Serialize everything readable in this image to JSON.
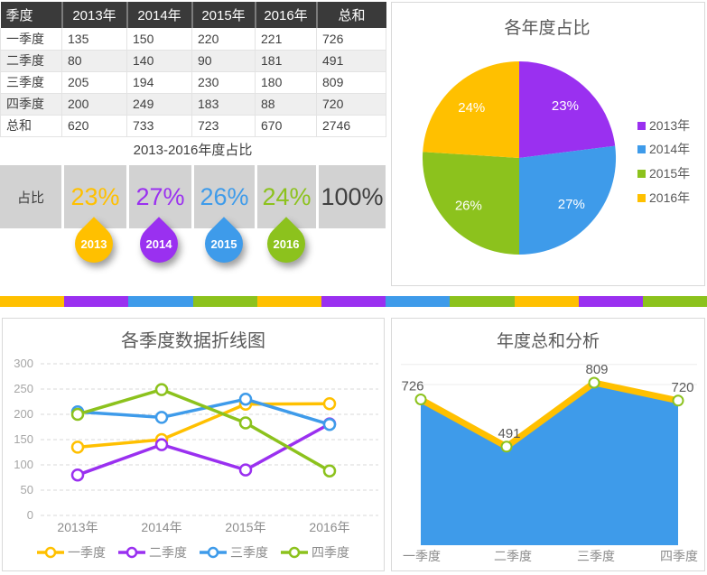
{
  "theme": {
    "orange": "#FFC000",
    "purple": "#9A30F0",
    "blue": "#3E9BEA",
    "green": "#8CC21D",
    "title_gray": "#595959",
    "axis_gray": "#A6A6A6",
    "label_gray": "#8C8C8C",
    "band_gray": "#D2D2D2",
    "header_dark": "#3A3A3A"
  },
  "table": {
    "headers": [
      "季度",
      "2013年",
      "2014年",
      "2015年",
      "2016年",
      "总和"
    ],
    "rows": [
      [
        "一季度",
        "135",
        "150",
        "220",
        "221",
        "726"
      ],
      [
        "二季度",
        "80",
        "140",
        "90",
        "181",
        "491"
      ],
      [
        "三季度",
        "205",
        "194",
        "230",
        "180",
        "809"
      ],
      [
        "四季度",
        "200",
        "249",
        "183",
        "88",
        "720"
      ],
      [
        "总和",
        "620",
        "733",
        "723",
        "670",
        "2746"
      ]
    ]
  },
  "ratio": {
    "title": "2013-2016年度占比",
    "row_label": "占比",
    "items": [
      {
        "year": "2013",
        "percent": "23%",
        "color": "orange"
      },
      {
        "year": "2014",
        "percent": "27%",
        "color": "purple"
      },
      {
        "year": "2015",
        "percent": "26%",
        "color": "blue"
      },
      {
        "year": "2016",
        "percent": "24%",
        "color": "green"
      }
    ],
    "total": "100%"
  },
  "divider": {
    "colors": [
      "orange",
      "purple",
      "blue",
      "green",
      "orange",
      "purple",
      "blue",
      "green",
      "orange",
      "purple",
      "green"
    ]
  },
  "chart_data": [
    {
      "id": "pie",
      "type": "pie",
      "title": "各年度占比",
      "labels": [
        "2013年",
        "2014年",
        "2015年",
        "2016年"
      ],
      "values": [
        23,
        27,
        26,
        24
      ],
      "slice_labels": [
        "23%",
        "27%",
        "26%",
        "24%"
      ],
      "colors": [
        "purple",
        "blue",
        "green",
        "orange"
      ],
      "legend_position": "right"
    },
    {
      "id": "line",
      "type": "line",
      "title": "各季度数据折线图",
      "x": [
        "2013年",
        "2014年",
        "2015年",
        "2016年"
      ],
      "series": [
        {
          "name": "一季度",
          "color": "orange",
          "values": [
            135,
            150,
            220,
            221
          ]
        },
        {
          "name": "二季度",
          "color": "purple",
          "values": [
            80,
            140,
            90,
            181
          ]
        },
        {
          "name": "三季度",
          "color": "blue",
          "values": [
            205,
            194,
            230,
            180
          ]
        },
        {
          "name": "四季度",
          "color": "green",
          "values": [
            200,
            249,
            183,
            88
          ]
        }
      ],
      "ylim": [
        0,
        300
      ],
      "yticks": [
        300,
        250,
        200,
        150,
        100,
        50,
        0
      ],
      "grid": "dashed",
      "legend_position": "bottom"
    },
    {
      "id": "area",
      "type": "area",
      "title": "年度总和分析",
      "categories": [
        "一季度",
        "二季度",
        "三季度",
        "四季度"
      ],
      "values": [
        726,
        491,
        809,
        720
      ],
      "data_labels": [
        "726",
        "491",
        "809",
        "720"
      ],
      "area_color": "blue",
      "line_color": "orange",
      "marker_color": "green",
      "ylim": [
        0,
        900
      ],
      "grid": "faint-horizontal"
    }
  ]
}
